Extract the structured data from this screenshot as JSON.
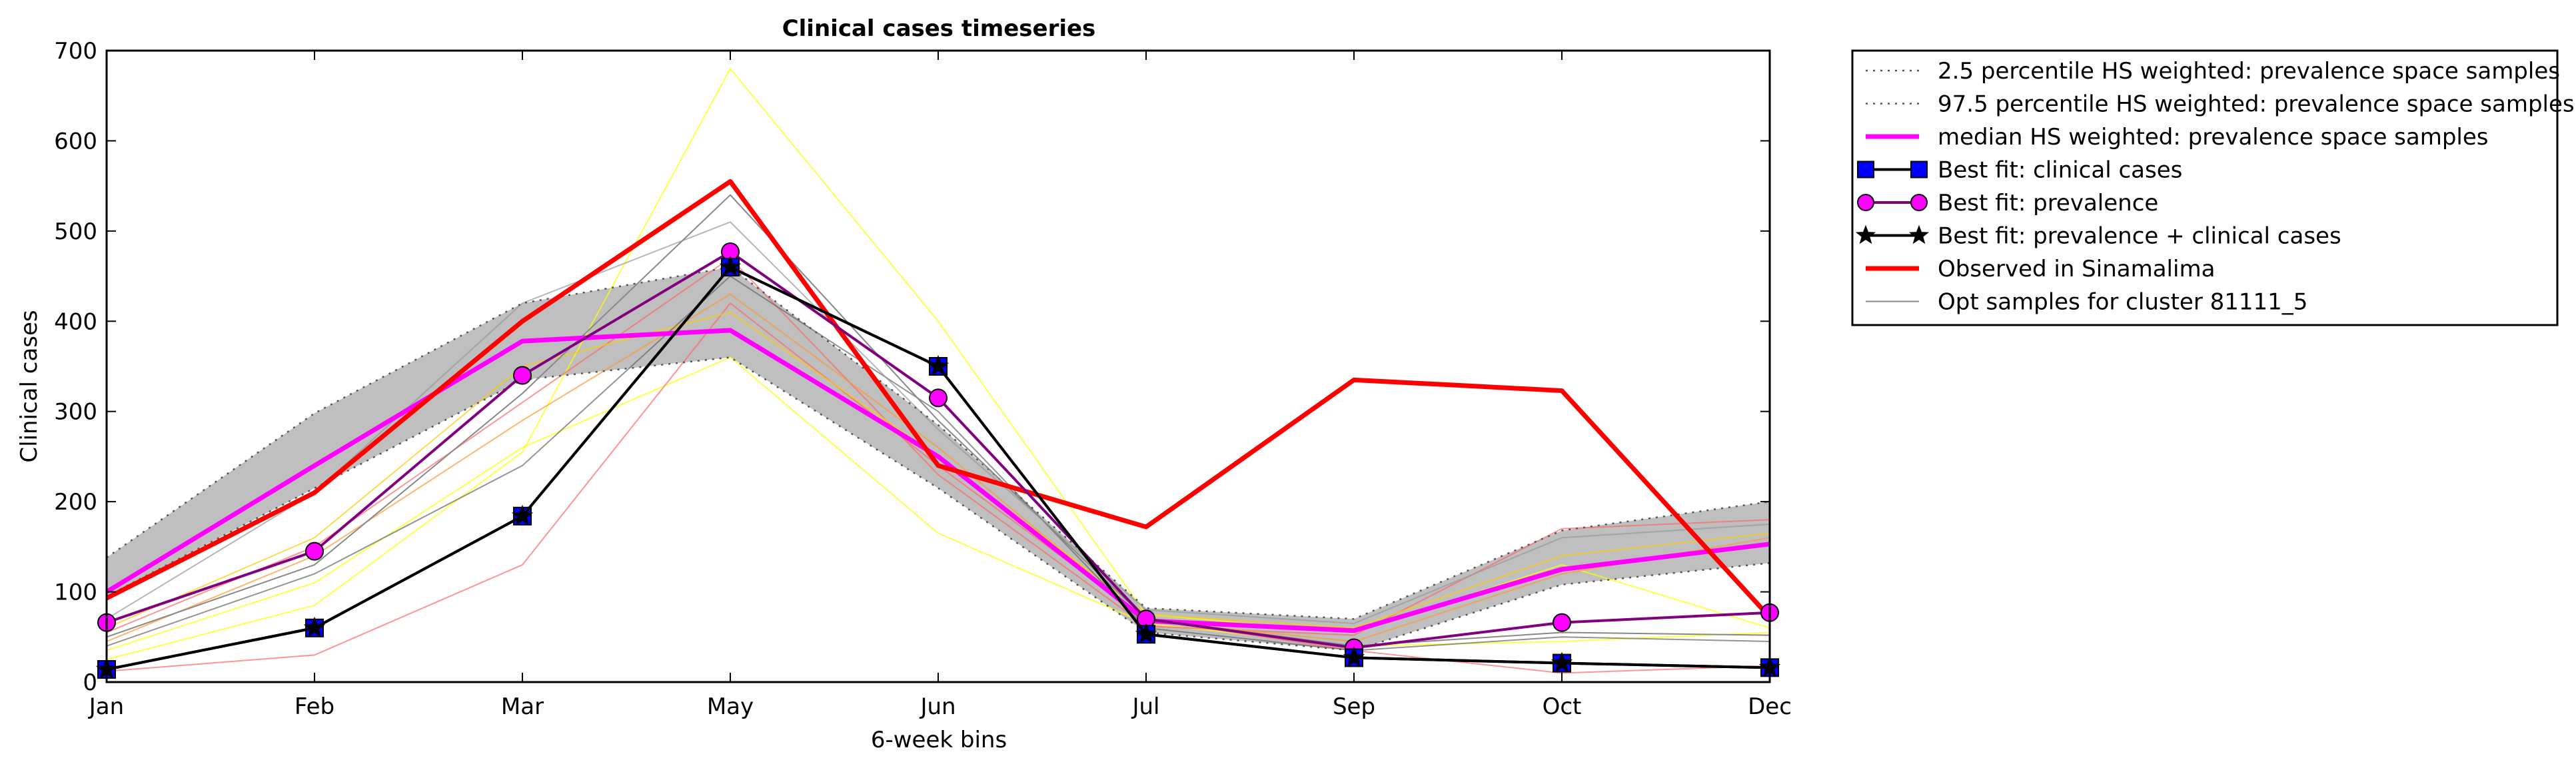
{
  "chart_data": {
    "type": "line",
    "title": "Clinical cases timeseries",
    "xlabel": "6-week bins",
    "ylabel": "Clinical cases",
    "categories": [
      "Jan",
      "Feb",
      "Mar",
      "May",
      "Jun",
      "Jul",
      "Sep",
      "Oct",
      "Dec"
    ],
    "ylim": [
      0,
      700
    ],
    "yticks": [
      0,
      100,
      200,
      300,
      400,
      500,
      600,
      700
    ],
    "grid": false,
    "legend_position": "outside-right",
    "band": {
      "lower": [
        95,
        215,
        335,
        360,
        215,
        55,
        35,
        108,
        132
      ],
      "upper": [
        138,
        298,
        420,
        460,
        285,
        82,
        70,
        168,
        200
      ],
      "fill_color": "#bfbfbf"
    },
    "series": [
      {
        "name": "2.5 percentile HS weighted: prevalence space samples",
        "values": [
          95,
          215,
          335,
          360,
          215,
          55,
          35,
          108,
          132
        ],
        "color": "#555555",
        "style": "dotted"
      },
      {
        "name": "97.5 percentile HS weighted: prevalence space samples",
        "values": [
          138,
          298,
          420,
          460,
          285,
          82,
          70,
          168,
          200
        ],
        "color": "#555555",
        "style": "dotted"
      },
      {
        "name": "median HS weighted: prevalence space samples",
        "values": [
          100,
          240,
          378,
          390,
          250,
          68,
          57,
          125,
          153
        ],
        "color": "#ff00ff",
        "style": "thick"
      },
      {
        "name": "Best fit: clinical cases",
        "values": [
          14,
          60,
          184,
          460,
          350,
          53,
          27,
          21,
          16
        ],
        "color": "#000000",
        "marker": "square",
        "marker_color": "#0000ff"
      },
      {
        "name": "Best fit: prevalence",
        "values": [
          66,
          145,
          340,
          477,
          315,
          70,
          38,
          66,
          77
        ],
        "color": "#800080",
        "marker": "circle",
        "marker_color": "#ff00ff"
      },
      {
        "name": "Best fit: prevalence + clinical cases",
        "values": [
          14,
          60,
          184,
          460,
          350,
          53,
          27,
          21,
          16
        ],
        "color": "#000000",
        "marker": "star"
      },
      {
        "name": "Observed in Sinamalima",
        "values": [
          93,
          210,
          400,
          555,
          240,
          172,
          335,
          323,
          72
        ],
        "color": "#ff0000",
        "style": "thick"
      },
      {
        "name": "Opt samples for cluster 81111_5",
        "values": [
          50,
          130,
          320,
          540,
          290,
          70,
          40,
          55,
          52
        ],
        "color": "#888888",
        "style": "thin"
      }
    ],
    "extra_sample_lines": [
      {
        "values": [
          25,
          85,
          255,
          680,
          400,
          75,
          55,
          130,
          60
        ],
        "color": "#ffff00"
      },
      {
        "values": [
          35,
          110,
          260,
          360,
          165,
          65,
          40,
          45,
          55
        ],
        "color": "#ffff00"
      },
      {
        "values": [
          12,
          30,
          130,
          420,
          240,
          70,
          35,
          10,
          18
        ],
        "color": "#ff6666"
      },
      {
        "values": [
          55,
          150,
          310,
          470,
          230,
          62,
          52,
          170,
          180
        ],
        "color": "#ff6666"
      },
      {
        "values": [
          45,
          140,
          290,
          430,
          260,
          68,
          45,
          120,
          160
        ],
        "color": "#ff9933"
      },
      {
        "values": [
          60,
          160,
          350,
          410,
          250,
          75,
          60,
          140,
          165
        ],
        "color": "#ffcc00"
      },
      {
        "values": [
          40,
          120,
          240,
          450,
          300,
          60,
          35,
          50,
          45
        ],
        "color": "#666666"
      },
      {
        "values": [
          70,
          210,
          420,
          510,
          280,
          80,
          65,
          160,
          175
        ],
        "color": "#999999"
      }
    ]
  }
}
